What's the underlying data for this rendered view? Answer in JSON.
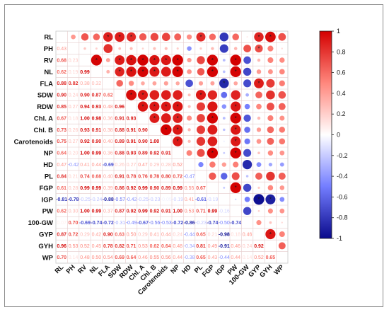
{
  "chart_data": {
    "type": "heatmap",
    "title": "",
    "variables": [
      "RL",
      "PH",
      "RV",
      "NL",
      "FLA",
      "SDW",
      "RDW",
      "Chl. A",
      "Chl. B",
      "Carotenoids",
      "NP",
      "HD",
      "PL",
      "FGP",
      "IGP",
      "PW",
      "100-GW",
      "GYP",
      "GYH",
      "WP"
    ],
    "lower_triangle_values": [
      [],
      [
        0.43
      ],
      [
        0.68,
        0.23
      ],
      [
        0.62,
        0.19,
        0.99
      ],
      [
        0.88,
        0.82,
        0.38,
        0.32
      ],
      [
        0.9,
        0.24,
        0.9,
        0.87,
        0.62
      ],
      [
        0.85,
        0.27,
        0.94,
        0.93,
        0.48,
        0.96
      ],
      [
        0.67,
        0.18,
        1.0,
        0.98,
        0.36,
        0.91,
        0.93
      ],
      [
        0.73,
        0.26,
        0.93,
        0.91,
        0.38,
        0.88,
        0.91,
        0.9
      ],
      [
        0.75,
        0.27,
        0.92,
        0.9,
        0.4,
        0.89,
        0.91,
        0.9,
        1.0
      ],
      [
        0.64,
        0.2,
        1.0,
        0.99,
        0.36,
        0.88,
        0.93,
        0.89,
        0.92,
        0.91
      ],
      [
        0.47,
        -0.42,
        0.41,
        0.44,
        -0.69,
        0.26,
        0.27,
        0.47,
        0.29,
        0.28,
        0.52
      ],
      [
        0.84,
        0.21,
        0.74,
        0.68,
        0.4,
        0.91,
        0.78,
        0.76,
        0.78,
        0.8,
        0.72,
        -0.47
      ],
      [
        0.61,
        0.28,
        0.99,
        0.99,
        0.39,
        0.86,
        0.92,
        0.99,
        0.9,
        0.89,
        0.99,
        0.55,
        0.67
      ],
      [
        -0.81,
        -0.78,
        -0.25,
        -0.24,
        -0.88,
        -0.57,
        -0.42,
        -0.25,
        -0.23,
        -0.05,
        -0.19,
        0.41,
        -0.61,
        -0.19
      ],
      [
        0.62,
        0.3,
        1.0,
        0.99,
        0.37,
        0.87,
        0.92,
        0.99,
        0.92,
        0.91,
        1.0,
        0.53,
        0.71,
        0.99,
        -0.16
      ],
      [
        0.07,
        0.7,
        -0.69,
        -0.74,
        -0.72,
        -0.31,
        -0.49,
        -0.67,
        -0.56,
        -0.53,
        -0.72,
        -0.86,
        -0.23,
        -0.74,
        -0.5,
        -0.74
      ],
      [
        0.87,
        0.72,
        0.29,
        0.42,
        0.9,
        0.63,
        0.5,
        0.29,
        0.41,
        0.44,
        0.24,
        -0.44,
        0.65,
        0.21,
        -0.98,
        0.18,
        0.46
      ],
      [
        0.96,
        0.53,
        0.52,
        0.45,
        0.78,
        0.82,
        0.71,
        0.53,
        0.62,
        0.64,
        0.48,
        -0.34,
        0.81,
        0.49,
        -0.91,
        0.46,
        0.24,
        0.92
      ],
      [
        0.7,
        0.14,
        0.48,
        0.5,
        0.54,
        0.69,
        0.64,
        0.46,
        0.55,
        0.56,
        0.44,
        -0.38,
        0.65,
        0.43,
        -0.44,
        0.44,
        0.14,
        0.52,
        0.65
      ]
    ],
    "significance_stars": [
      [
        "RL",
        "SDW"
      ],
      [
        "RL",
        "RDW"
      ],
      [
        "RL",
        "GYP"
      ],
      [
        "RL",
        "GYH"
      ],
      [
        "RL",
        "PL"
      ],
      [
        "RL",
        "FLA"
      ],
      [
        "PH",
        "GYP"
      ],
      [
        "RV",
        "NL"
      ],
      [
        "RV",
        "SDW"
      ],
      [
        "RV",
        "RDW"
      ],
      [
        "RV",
        "Chl. A"
      ],
      [
        "RV",
        "Chl. B"
      ],
      [
        "RV",
        "Carotenoids"
      ],
      [
        "RV",
        "NP"
      ],
      [
        "RV",
        "FGP"
      ],
      [
        "RV",
        "PW"
      ],
      [
        "NL",
        "SDW"
      ],
      [
        "NL",
        "RDW"
      ],
      [
        "NL",
        "Chl. A"
      ],
      [
        "NL",
        "Chl. B"
      ],
      [
        "NL",
        "NP"
      ],
      [
        "NL",
        "FGP"
      ],
      [
        "NL",
        "PW"
      ],
      [
        "FLA",
        "GYP"
      ],
      [
        "FLA",
        "IGP"
      ],
      [
        "SDW",
        "RDW"
      ],
      [
        "SDW",
        "Chl. A"
      ],
      [
        "SDW",
        "PL"
      ],
      [
        "RDW",
        "Chl. A"
      ],
      [
        "RDW",
        "Chl. B"
      ],
      [
        "RDW",
        "Carotenoids"
      ],
      [
        "RDW",
        "NP"
      ],
      [
        "RDW",
        "PW"
      ],
      [
        "Chl. A",
        "Chl. B"
      ],
      [
        "Chl. A",
        "NP"
      ],
      [
        "Chl. A",
        "FGP"
      ],
      [
        "Chl. A",
        "PW"
      ],
      [
        "Chl. B",
        "Carotenoids"
      ],
      [
        "Chl. B",
        "NP"
      ],
      [
        "Chl. B",
        "PW"
      ],
      [
        "Carotenoids",
        "NP"
      ],
      [
        "Carotenoids",
        "PW"
      ],
      [
        "NP",
        "FGP"
      ],
      [
        "NP",
        "PW"
      ],
      [
        "FGP",
        "PW"
      ],
      [
        "IGP",
        "GYP"
      ],
      [
        "IGP",
        "GYH"
      ],
      [
        "GYP",
        "GYH"
      ]
    ],
    "colorbar": {
      "range": [
        -1,
        1
      ],
      "ticks": [
        "1",
        "0.8",
        "0.6",
        "0.4",
        "0.2",
        "0",
        "-0.2",
        "-0.4",
        "-0.6",
        "-0.8",
        "-1"
      ],
      "colors": {
        "negative": "#0a0a8c",
        "zero": "#ffffff",
        "positive": "#d40000"
      }
    },
    "upper_triangle": "circles sized and colored by correlation",
    "lower_triangle": "numeric correlation values"
  }
}
